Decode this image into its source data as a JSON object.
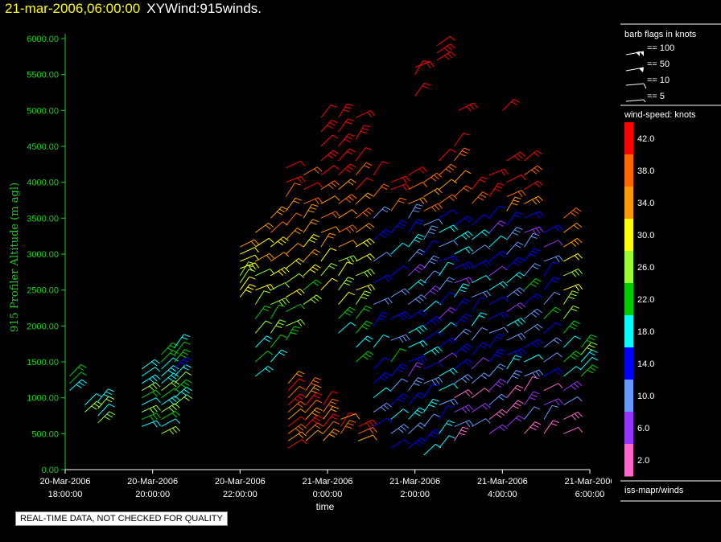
{
  "header": {
    "datetime": "21-mar-2006,06:00:00",
    "title": "XYWind:915winds."
  },
  "notice": "REAL-TIME DATA, NOT CHECKED FOR QUALITY",
  "colors": {
    "axis": "#22cc22",
    "yellow": "#ffff00",
    "speed_scale": [
      "#ff66cc",
      "#9933ff",
      "#6699ff",
      "#0000ff",
      "#00ffff",
      "#00cc00",
      "#99ff33",
      "#ffff00",
      "#ff9900",
      "#ff6600",
      "#ff0000"
    ]
  },
  "legend": {
    "barb_title": "barb flags in knots",
    "barb_items": [
      "== 100",
      "== 50",
      "== 10",
      "== 5"
    ],
    "speed_title": "wind-speed: knots",
    "speed_labels": [
      "42.0",
      "38.0",
      "34.0",
      "30.0",
      "26.0",
      "22.0",
      "18.0",
      "14.0",
      "10.0",
      "6.0",
      "2.0"
    ],
    "source": "iss-mapr/winds"
  },
  "chart_data": {
    "type": "scatter",
    "title": "21-mar-2006,06:00:00 XYWind:915winds.",
    "xlabel": "time",
    "ylabel": "915 Profiler Altitude (m agl)",
    "ylim": [
      0,
      6000
    ],
    "xlim": [
      "20-Mar-2006 18:00:00",
      "21-Mar-2006 06:00:00"
    ],
    "y_ticks": [
      "0.00",
      "500.00",
      "1000.00",
      "1500.00",
      "2000.00",
      "2500.00",
      "3000.00",
      "3500.00",
      "4000.00",
      "4500.00",
      "5000.00",
      "5500.00",
      "6000.00"
    ],
    "x_ticks": [
      {
        "date": "20-Mar-2006",
        "time": "18:00:00",
        "hour": 0
      },
      {
        "date": "20-Mar-2006",
        "time": "20:00:00",
        "hour": 2
      },
      {
        "date": "20-Mar-2006",
        "time": "22:00:00",
        "hour": 4
      },
      {
        "date": "21-Mar-2006",
        "time": "0:00:00",
        "hour": 6
      },
      {
        "date": "21-Mar-2006",
        "time": "2:00:00",
        "hour": 8
      },
      {
        "date": "21-Mar-2006",
        "time": "4:00:00",
        "hour": 10
      },
      {
        "date": "21-Mar-2006",
        "time": "6:00:00",
        "hour": 12
      }
    ],
    "series": [
      {
        "hour": 0.1,
        "alt": [
          1100,
          1200,
          1300
        ]
      },
      {
        "hour": 0.45,
        "alt": [
          800,
          900
        ]
      },
      {
        "hour": 0.75,
        "alt": [
          650,
          750,
          850,
          950
        ]
      },
      {
        "hour": 1.75,
        "alt": [
          600,
          700,
          800,
          900,
          1000,
          1100,
          1200,
          1300,
          1400
        ]
      },
      {
        "hour": 2.2,
        "alt": [
          500,
          600,
          700,
          800,
          900,
          1000,
          1100,
          1200,
          1300,
          1400,
          1500,
          1600
        ]
      },
      {
        "hour": 2.5,
        "alt": [
          900,
          1000,
          1100,
          1200,
          1300,
          1400,
          1500,
          1600,
          1700
        ]
      },
      {
        "hour": 4.0,
        "alt": [
          2400,
          2500,
          2600,
          2700,
          2800,
          2900,
          3000,
          3100
        ]
      },
      {
        "hour": 4.35,
        "alt": [
          1300,
          1500,
          1700,
          1900,
          2100,
          2300,
          2500,
          2700,
          2900,
          3100,
          3300
        ]
      },
      {
        "hour": 4.7,
        "alt": [
          1500,
          1700,
          1900,
          2100,
          2300,
          2500,
          2700,
          2900,
          3100,
          3300,
          3500
        ]
      },
      {
        "hour": 5.05,
        "alt": [
          1800,
          2000,
          2200,
          2400,
          2600,
          2800,
          3000,
          3200,
          3400,
          3600,
          3800,
          4000,
          4200
        ]
      },
      {
        "hour": 5.1,
        "alt": [
          300,
          400,
          500,
          600,
          700,
          800,
          900,
          1000,
          1100,
          1200
        ]
      },
      {
        "hour": 5.45,
        "alt": [
          2300,
          2500,
          2700,
          2900,
          3100,
          3300,
          3500,
          3700,
          3900,
          4100
        ]
      },
      {
        "hour": 5.5,
        "alt": [
          400,
          500,
          600,
          700,
          800,
          900,
          1000,
          1100
        ]
      },
      {
        "hour": 5.85,
        "alt": [
          2500,
          2700,
          2900,
          3100,
          3300,
          3500,
          3700,
          3900,
          4100,
          4300,
          4500,
          4700,
          4900
        ]
      },
      {
        "hour": 5.9,
        "alt": [
          400,
          500,
          600,
          700,
          800,
          900
        ]
      },
      {
        "hour": 6.25,
        "alt": [
          1900,
          2100,
          2300,
          2500,
          2700,
          2900,
          3100,
          3300,
          3500,
          3700,
          3900,
          4100,
          4300,
          4500,
          4700,
          4900
        ]
      },
      {
        "hour": 6.3,
        "alt": [
          500,
          600,
          700
        ]
      },
      {
        "hour": 6.65,
        "alt": [
          1500,
          1700,
          1900,
          2100,
          2300,
          2500,
          2700,
          2900,
          3100,
          3300,
          3500,
          3700,
          3900,
          4100,
          4300,
          4600,
          4900
        ]
      },
      {
        "hour": 6.7,
        "alt": [
          400,
          500,
          600
        ]
      },
      {
        "hour": 7.05,
        "alt": [
          600,
          800,
          1000,
          1200,
          1400,
          1700,
          2000,
          2300,
          2600,
          2900,
          3200,
          3500,
          3800,
          4100
        ]
      },
      {
        "hour": 7.45,
        "alt": [
          300,
          500,
          700,
          900,
          1100,
          1300,
          1500,
          1800,
          2100,
          2400,
          2700,
          3000,
          3300,
          3600,
          3900,
          4000
        ]
      },
      {
        "hour": 7.85,
        "alt": [
          300,
          500,
          700,
          900,
          1100,
          1300,
          1500,
          1700,
          1900,
          2100,
          2300,
          2500,
          2700,
          2900,
          3100,
          3300,
          3500,
          3700,
          3900,
          4100
        ]
      },
      {
        "hour": 8.2,
        "alt": [
          200,
          400,
          600,
          800,
          1000,
          1200,
          1400,
          1600,
          1800,
          2000,
          2200,
          2400,
          2600,
          2800,
          3000,
          3200,
          3400,
          3600,
          3800,
          4000
        ]
      },
      {
        "hour": 8.0,
        "alt": [
          5200,
          5500,
          5600
        ]
      },
      {
        "hour": 8.55,
        "alt": [
          300,
          500,
          700,
          900,
          1100,
          1300,
          1500,
          1700,
          1900,
          2100,
          2300,
          2500,
          2700,
          2900,
          3100,
          3300,
          3500,
          3700,
          3900,
          4100,
          4300
        ]
      },
      {
        "hour": 8.5,
        "alt": [
          5700,
          5800,
          5900
        ]
      },
      {
        "hour": 8.9,
        "alt": [
          400,
          600,
          800,
          1000,
          1200,
          1400,
          1600,
          1800,
          2000,
          2200,
          2400,
          2600,
          2800,
          3000,
          3200,
          3400,
          3800,
          4000,
          4300,
          4500
        ]
      },
      {
        "hour": 9.0,
        "alt": [
          5000
        ]
      },
      {
        "hour": 9.3,
        "alt": [
          600,
          800,
          1000,
          1200,
          1400,
          1600,
          1800,
          2000,
          2200,
          2400,
          2600,
          2800,
          3000,
          3200,
          3400,
          3700,
          3900
        ]
      },
      {
        "hour": 9.7,
        "alt": [
          500,
          700,
          900,
          1100,
          1300,
          1500,
          1700,
          1900,
          2100,
          2300,
          2500,
          2700,
          2900,
          3100,
          3300,
          3500,
          3800,
          4100
        ]
      },
      {
        "hour": 10.1,
        "alt": [
          600,
          800,
          1000,
          1200,
          1400,
          1600,
          1800,
          2000,
          2200,
          2400,
          2600,
          2800,
          3000,
          3200,
          3400,
          3600,
          3800,
          4000,
          4300
        ]
      },
      {
        "hour": 10.0,
        "alt": [
          5000
        ]
      },
      {
        "hour": 10.5,
        "alt": [
          500,
          700,
          900,
          1100,
          1300,
          1500,
          1700,
          1900,
          2100,
          2300,
          2500,
          2700,
          2900,
          3100,
          3300,
          3500,
          3700,
          3900,
          4100,
          4300
        ]
      },
      {
        "hour": 10.95,
        "alt": [
          500,
          700,
          900,
          1100,
          1300,
          1500,
          1700,
          1900,
          2100,
          2300,
          2500,
          2700,
          2900,
          3100,
          3300
        ]
      },
      {
        "hour": 11.4,
        "alt": [
          500,
          700,
          900,
          1100,
          1300,
          1500,
          1700,
          1900,
          2100,
          2300,
          2500,
          2700,
          2900,
          3100,
          3300,
          3500
        ]
      },
      {
        "hour": 11.8,
        "alt": [
          1300,
          1400,
          1500,
          1600,
          1700
        ]
      }
    ]
  }
}
